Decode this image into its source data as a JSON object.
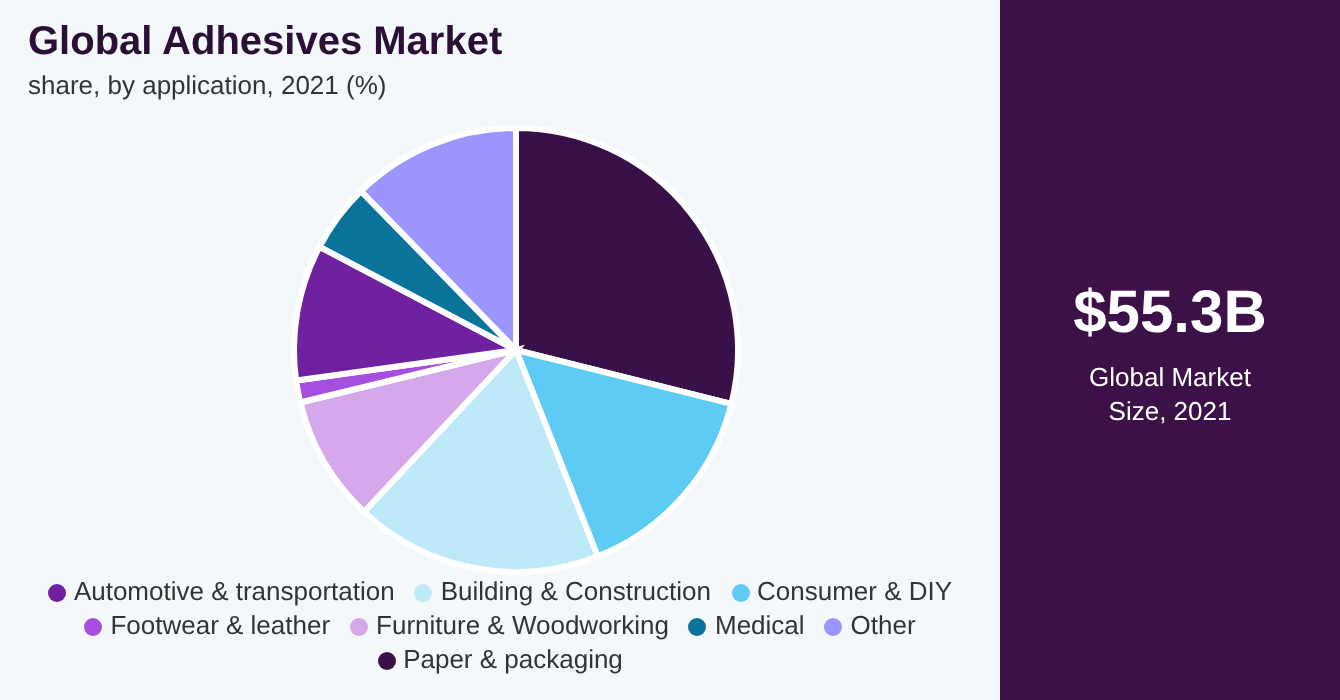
{
  "chart_data": {
    "type": "pie",
    "title": "Global Adhesives Market",
    "subtitle": "share, by application, 2021 (%)",
    "categories": [
      "Paper & packaging",
      "Consumer & DIY",
      "Building & Construction",
      "Furniture & Woodworking",
      "Footwear & leather",
      "Automotive & transportation",
      "Medical",
      "Other"
    ],
    "values": [
      28.9,
      15.1,
      18.0,
      9.2,
      1.6,
      9.9,
      5.0,
      12.3
    ],
    "colors": [
      "#371148",
      "#5ecbf5",
      "#bde9f9",
      "#d5a8eb",
      "#a54ee0",
      "#6f21a0",
      "#0a7399",
      "#9b95fd"
    ],
    "legend": "bottom",
    "annotations": [
      "$55.3B",
      "Global Market Size, 2021"
    ]
  }
}
